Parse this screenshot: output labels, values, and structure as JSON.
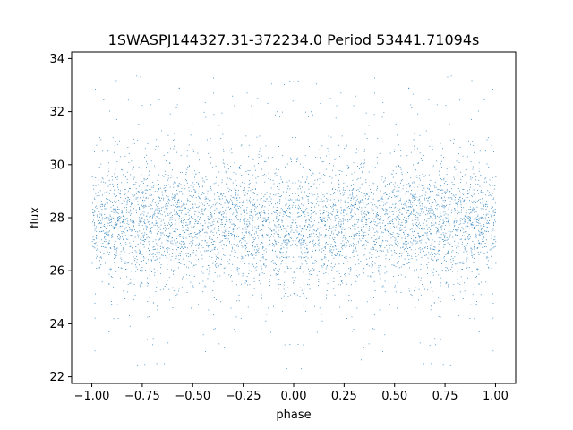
{
  "chart_data": {
    "type": "scatter",
    "title": "1SWASPJ144327.31-372234.0 Period 53441.71094s",
    "xlabel": "phase",
    "ylabel": "flux",
    "xlim": [
      -1.1,
      1.1
    ],
    "ylim": [
      21.75,
      34.25
    ],
    "xticks": [
      -1.0,
      -0.75,
      -0.5,
      -0.25,
      0.0,
      0.25,
      0.5,
      0.75,
      1.0
    ],
    "xtick_labels": [
      "−1.00",
      "−0.75",
      "−0.50",
      "−0.25",
      "0.00",
      "0.25",
      "0.50",
      "0.75",
      "1.00"
    ],
    "yticks": [
      22,
      24,
      26,
      28,
      30,
      32,
      34
    ],
    "ytick_labels": [
      "22",
      "24",
      "26",
      "28",
      "30",
      "32",
      "34"
    ],
    "grid": false,
    "legend": "none",
    "point_color": "#1f77b4",
    "series": [
      {
        "x_range": [
          -1.0,
          1.0
        ],
        "y_center": 27.8,
        "y_core_spread": 1.1,
        "y_outlier_range": [
          22.3,
          33.5
        ],
        "mirrored_about_phase_zero": true
      }
    ]
  }
}
